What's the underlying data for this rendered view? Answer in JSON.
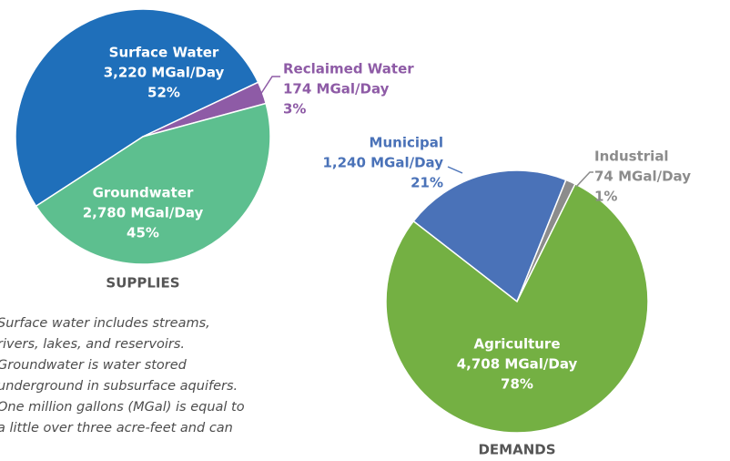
{
  "chart_data": [
    {
      "type": "pie",
      "title": "SUPPLIES",
      "categories": [
        "Surface Water",
        "Reclaimed Water",
        "Groundwater"
      ],
      "values": [
        3220,
        174,
        2780
      ],
      "value_labels": [
        "3,220 MGal/Day",
        "174 MGal/Day",
        "2,780 MGal/Day"
      ],
      "percents": [
        52,
        3,
        45
      ],
      "percent_labels": [
        "52%",
        "3%",
        "45%"
      ],
      "colors": [
        "#1f6fba",
        "#8e5ba6",
        "#5dbf8f"
      ]
    },
    {
      "type": "pie",
      "title": "DEMANDS",
      "categories": [
        "Municipal",
        "Industrial",
        "Agriculture"
      ],
      "values": [
        1240,
        74,
        4708
      ],
      "value_labels": [
        "1,240 MGal/Day",
        "74 MGal/Day",
        "4,708 MGal/Day"
      ],
      "percents": [
        21,
        1,
        78
      ],
      "percent_labels": [
        "21%",
        "1%",
        "78%"
      ],
      "colors": [
        "#4a72b8",
        "#8c8c8c",
        "#74b043"
      ]
    }
  ],
  "note": [
    "Surface water includes streams,",
    "rivers, lakes, and reservoirs.",
    "Groundwater is water stored",
    "underground in subsurface aquifers.",
    "One million gallons (MGal) is equal to",
    "a little over three acre-feet and can"
  ]
}
